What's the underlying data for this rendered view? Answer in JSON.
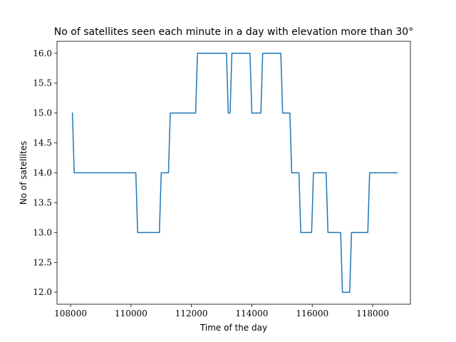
{
  "chart_data": {
    "type": "line",
    "title": "No of satellites seen each minute in a day with elevation more than 30°",
    "xlabel": "Time of the day",
    "ylabel": "No of satellites",
    "xlim": [
      107550,
      119250
    ],
    "ylim": [
      11.8,
      16.2
    ],
    "xticks": [
      108000,
      110000,
      112000,
      114000,
      116000,
      118000
    ],
    "yticks": [
      12.0,
      12.5,
      13.0,
      13.5,
      14.0,
      14.5,
      15.0,
      15.5,
      16.0
    ],
    "xtick_labels": [
      "108000",
      "110000",
      "112000",
      "114000",
      "116000",
      "118000"
    ],
    "ytick_labels": [
      "12.0",
      "12.5",
      "13.0",
      "13.5",
      "14.0",
      "14.5",
      "15.0",
      "15.5",
      "16.0"
    ],
    "grid": false,
    "colors": {
      "line": "#1f77b4",
      "axes": "#000000"
    },
    "series": [
      {
        "x": [
          108060,
          108120,
          110160,
          110220,
          110940,
          111000,
          111240,
          111300,
          112140,
          112200,
          113160,
          113220,
          113280,
          113340,
          113940,
          114000,
          114300,
          114360,
          114960,
          115020,
          115260,
          115320,
          115560,
          115620,
          115980,
          116040,
          116460,
          116520,
          116820,
          116880,
          116940,
          117000,
          117240,
          117300,
          117840,
          117900,
          118800
        ],
        "y": [
          15,
          14,
          14,
          13,
          13,
          14,
          14,
          15,
          15,
          16,
          16,
          15,
          15,
          16,
          16,
          15,
          15,
          16,
          16,
          15,
          15,
          14,
          14,
          13,
          13,
          14,
          14,
          13,
          13,
          13,
          13,
          12,
          12,
          13,
          13,
          14,
          14
        ]
      }
    ]
  }
}
